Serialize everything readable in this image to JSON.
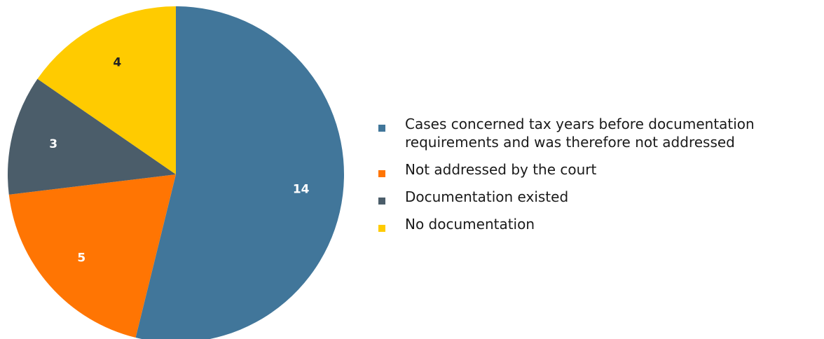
{
  "chart_data": {
    "type": "pie",
    "slices": [
      {
        "label": "Cases concerned tax years before documentation requirements and was therefore not addressed",
        "value": 14,
        "color": "#41769A"
      },
      {
        "label": "Not addressed by the court",
        "value": 5,
        "color": "#FF7503"
      },
      {
        "label": "Documentation existed",
        "value": 3,
        "color": "#4B5D6A"
      },
      {
        "label": "No documentation",
        "value": 4,
        "color": "#FFCB00"
      }
    ],
    "data_label_colors": [
      "#ffffff",
      "#ffffff",
      "#ffffff",
      "#222222"
    ],
    "start_angle": "12 o'clock",
    "direction": "clockwise",
    "legend_position": "right"
  }
}
